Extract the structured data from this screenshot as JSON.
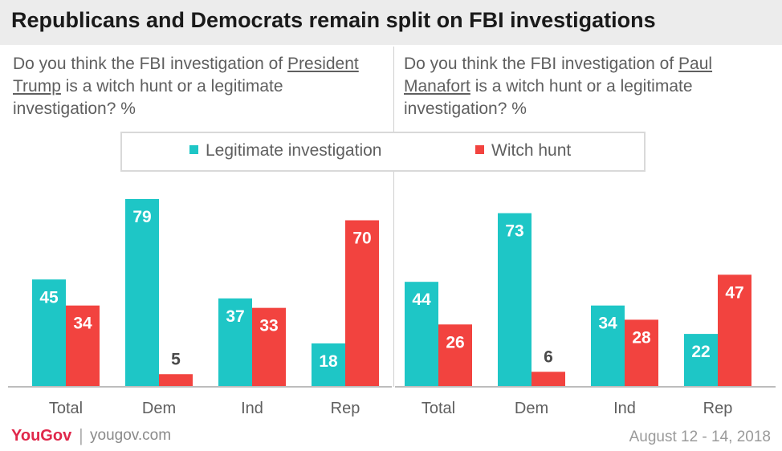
{
  "header": {
    "title": "Republicans and Democrats remain split on FBI investigations"
  },
  "questions": {
    "left": {
      "prefix": "Do you think the FBI investigation of",
      "subject": "President Trump",
      "suffix": "is a witch hunt or a legitimate investigation? %"
    },
    "right": {
      "prefix": "Do you think the FBI investigation of",
      "subject": "Paul Manafort",
      "suffix": "is a witch hunt or a legitimate investigation? %"
    }
  },
  "legend": [
    {
      "name": "Legitimate investigation",
      "color": "#1ec6c6"
    },
    {
      "name": "Witch hunt",
      "color": "#f2433f"
    }
  ],
  "footer": {
    "logo": "YouGov",
    "url": "yougov.com",
    "date": "August 12 - 14, 2018"
  },
  "chart_data": [
    {
      "type": "bar",
      "title": "",
      "categories": [
        "Total",
        "Dem",
        "Ind",
        "Rep"
      ],
      "series": [
        {
          "name": "Legitimate investigation",
          "values": [
            45,
            79,
            37,
            18
          ],
          "color": "#1ec6c6"
        },
        {
          "name": "Witch hunt",
          "values": [
            34,
            5,
            33,
            70
          ],
          "color": "#f2433f"
        }
      ],
      "ylim": [
        0,
        80
      ],
      "grid": false,
      "legend": "top"
    },
    {
      "type": "bar",
      "title": "",
      "categories": [
        "Total",
        "Dem",
        "Ind",
        "Rep"
      ],
      "series": [
        {
          "name": "Legitimate investigation",
          "values": [
            44,
            73,
            34,
            22
          ],
          "color": "#1ec6c6"
        },
        {
          "name": "Witch hunt",
          "values": [
            26,
            6,
            28,
            47
          ],
          "color": "#f2433f"
        }
      ],
      "ylim": [
        0,
        80
      ],
      "grid": false,
      "legend": "top"
    }
  ]
}
